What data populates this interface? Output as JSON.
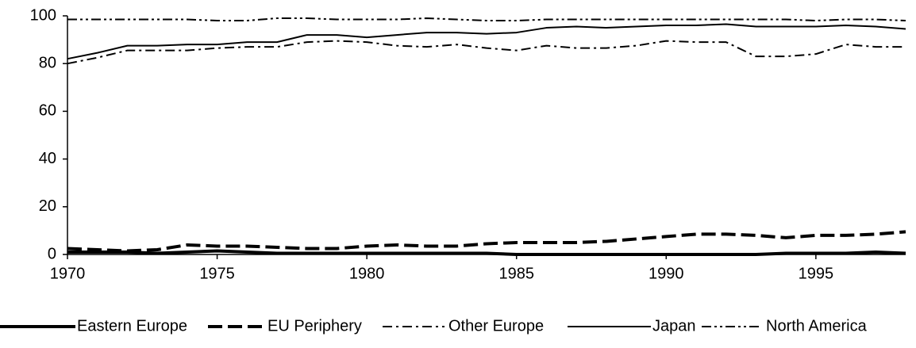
{
  "chart_data": {
    "type": "line",
    "x": [
      1970,
      1971,
      1972,
      1973,
      1974,
      1975,
      1976,
      1977,
      1978,
      1979,
      1980,
      1981,
      1982,
      1983,
      1984,
      1985,
      1986,
      1987,
      1988,
      1989,
      1990,
      1991,
      1992,
      1993,
      1994,
      1995,
      1996,
      1997,
      1998
    ],
    "series": [
      {
        "name": "Eastern Europe",
        "color": "#000000",
        "style": "thick-solid",
        "values": [
          1,
          1,
          1,
          0.5,
          1,
          1.5,
          1,
          0.5,
          0.5,
          0.5,
          0.5,
          0.5,
          0.5,
          0.5,
          0.5,
          0,
          0,
          0,
          0,
          0,
          0,
          0,
          0,
          0,
          0.5,
          0.5,
          0.5,
          1,
          0.5
        ]
      },
      {
        "name": "EU Periphery",
        "color": "#000000",
        "style": "thick-dashed",
        "values": [
          2.5,
          2,
          1.5,
          2,
          4,
          3.5,
          3.5,
          3,
          2.5,
          2.5,
          3.5,
          4,
          3.5,
          3.5,
          4.5,
          5,
          5,
          5,
          5.5,
          6.5,
          7.5,
          8.5,
          8.5,
          8,
          7,
          8,
          8,
          8.5,
          9.5
        ]
      },
      {
        "name": "Other Europe",
        "color": "#000000",
        "style": "thin-dashdot",
        "values": [
          80,
          82.5,
          85.5,
          85.5,
          85.5,
          86.5,
          87,
          87,
          89,
          89.5,
          89,
          87.5,
          87,
          88,
          86.5,
          85.5,
          87.5,
          86.5,
          86.5,
          87.5,
          89.5,
          89,
          89,
          83,
          83,
          84,
          88,
          87,
          87
        ]
      },
      {
        "name": "Japan",
        "color": "#000000",
        "style": "thin-solid",
        "values": [
          82,
          84.5,
          87.5,
          87.5,
          88,
          88,
          89,
          89,
          92,
          92,
          91,
          92,
          93,
          93,
          92.5,
          93,
          95,
          95.5,
          95,
          95.5,
          96,
          96,
          96.5,
          95.5,
          95.5,
          95.5,
          96,
          95.5,
          94.5
        ]
      },
      {
        "name": "North America",
        "color": "#000000",
        "style": "thin-dashdotdot",
        "values": [
          98.5,
          98.5,
          98.5,
          98.5,
          98.5,
          98,
          98,
          99,
          99,
          98.5,
          98.5,
          98.5,
          99,
          98.5,
          98,
          98,
          98.5,
          98.5,
          98.5,
          98.5,
          98.5,
          98.5,
          98.5,
          98.5,
          98.5,
          98,
          98.5,
          98.5,
          98
        ]
      }
    ],
    "xlim": [
      1970,
      1998
    ],
    "xticks": [
      1970,
      1975,
      1980,
      1985,
      1990,
      1995
    ],
    "ylim": [
      0,
      100
    ],
    "yticks": [
      0,
      20,
      40,
      60,
      80,
      100
    ],
    "grid": false,
    "legend": "bottom"
  }
}
